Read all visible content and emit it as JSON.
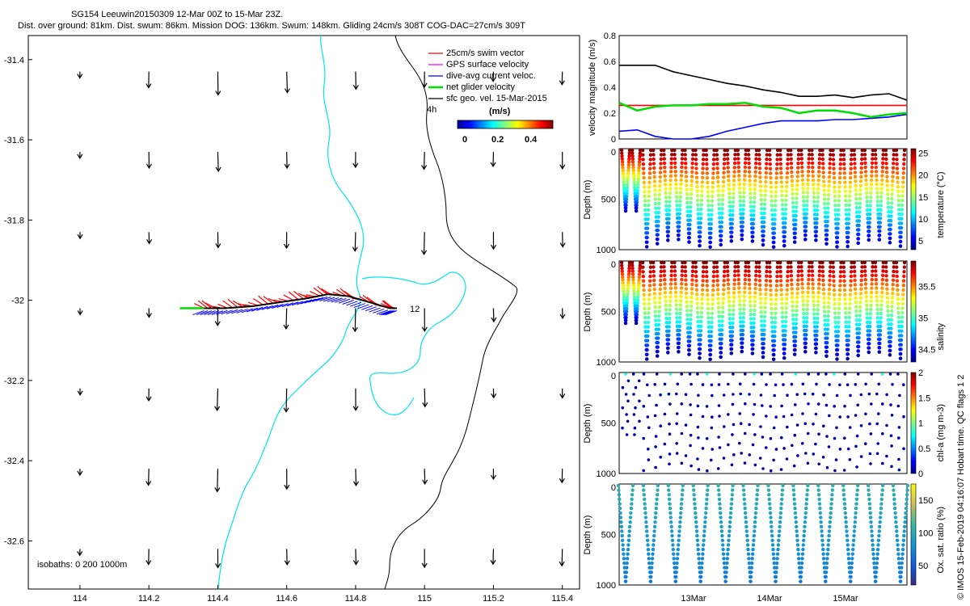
{
  "header": {
    "line1": "SG154 Leeuwin20150309 12-Mar 00Z to 15-Mar 23Z.",
    "line2": "Dist. over ground: 81km. Dist. swum: 86km. Mission DOG: 136km. Swum: 148km. Gliding 24cm/s 308T COG-DAC=27cm/s 309T"
  },
  "footer_vertical": "© IMOS 15-Feb-2019 04:16:07 Hobart time. QC flags 1 2",
  "colors": {
    "swim": "#ff0000",
    "gps": "#ff00ff",
    "dac": "#0000ff",
    "net": "#00dd00",
    "sfc": "#000000",
    "isobath": "#00e5ee",
    "isobath_deep": "#000000"
  },
  "map": {
    "legend": [
      {
        "label": "25cm/s swim vector",
        "color": "#ff0000"
      },
      {
        "label": "GPS surface velocity",
        "color": "#ff00ff"
      },
      {
        "label": "dive-avg current veloc.",
        "color": "#0000ff"
      },
      {
        "label": "net glider velocity",
        "color": "#00dd00"
      },
      {
        "label": "sfc geo. vel. 15-Mar-2015",
        "color": "#000000"
      }
    ],
    "time_label": "4h",
    "end_label": "12",
    "colorbar_title": "(m/s)",
    "colorbar_ticks": [
      "0",
      "0.2",
      "0.4"
    ],
    "isobaths_label": "isobaths: 0   200  1000m"
  },
  "chart_data": [
    {
      "type": "scatter",
      "title": "",
      "xlim": [
        113.85,
        115.45
      ],
      "ylim": [
        -32.72,
        -31.34
      ],
      "xticks": [
        "114",
        "114.2",
        "114.4",
        "114.6",
        "114.8",
        "115",
        "115.2",
        "115.4"
      ],
      "yticks": [
        "-31.4",
        "-31.6",
        "-31.8",
        "-32",
        "-32.2",
        "-32.4",
        "-32.6"
      ],
      "xtick_values": [
        114,
        114.2,
        114.4,
        114.6,
        114.8,
        115,
        115.2,
        115.4
      ],
      "ytick_values": [
        -31.4,
        -31.6,
        -31.8,
        -32,
        -32.2,
        -32.4,
        -32.6
      ],
      "glider_track": {
        "lon": [
          114.36,
          114.42,
          114.5,
          114.58,
          114.66,
          114.72,
          114.78,
          114.84,
          114.9,
          114.92
        ],
        "lat": [
          -32.02,
          -32.02,
          -32.015,
          -32.005,
          -31.995,
          -31.985,
          -31.99,
          -32.005,
          -32.02,
          -32.02
        ]
      },
      "current_grid": {
        "lon": [
          114,
          114.2,
          114.4,
          114.6,
          114.8,
          115,
          115.2,
          115.4
        ],
        "lat": [
          -31.43,
          -31.63,
          -31.83,
          -32.02,
          -32.22,
          -32.42,
          -32.62
        ],
        "note_units": "m/s"
      }
    },
    {
      "type": "line",
      "ylabel": "velocity magnitude (m/s)",
      "ylim": [
        0,
        0.8
      ],
      "yticks": [
        "0",
        "0.2",
        "0.4",
        "0.6",
        "0.8"
      ],
      "x": [
        0,
        0.25,
        0.5,
        0.75,
        1,
        1.25,
        1.5,
        1.75,
        2,
        2.25,
        2.5,
        2.75,
        3,
        3.25,
        3.5,
        3.75,
        4
      ],
      "series": [
        {
          "values": [
            0.57,
            0.57,
            0.57,
            0.52,
            0.49,
            0.46,
            0.43,
            0.41,
            0.38,
            0.36,
            0.33,
            0.33,
            0.34,
            0.32,
            0.34,
            0.35,
            0.3
          ]
        },
        {
          "values": [
            0.26,
            0.26,
            0.26,
            0.26,
            0.26,
            0.26,
            0.26,
            0.26,
            0.26,
            0.26,
            0.26,
            0.26,
            0.26,
            0.26,
            0.26,
            0.26,
            0.26
          ]
        },
        {
          "values": [
            0.06,
            0.07,
            0.02,
            0.0,
            0.0,
            0.02,
            0.06,
            0.09,
            0.12,
            0.14,
            0.14,
            0.14,
            0.15,
            0.15,
            0.16,
            0.17,
            0.19
          ]
        },
        {
          "values": [
            0.28,
            0.22,
            0.25,
            0.26,
            0.26,
            0.27,
            0.27,
            0.28,
            0.25,
            0.24,
            0.2,
            0.22,
            0.22,
            0.2,
            0.17,
            0.19,
            0.2
          ]
        }
      ]
    },
    {
      "type": "scatter",
      "ylabel": "Depth (m)",
      "cbar_label": "temperature (°C)",
      "cbar_ticks": [
        "25",
        "20",
        "15",
        "10",
        "5"
      ],
      "cbar_range": [
        3,
        26
      ],
      "depth_ticks": [
        "0",
        "500",
        "1000"
      ],
      "dives": 27,
      "max_depth": [
        650,
        1000
      ]
    },
    {
      "type": "scatter",
      "ylabel": "Depth (m)",
      "cbar_label": "salinity",
      "cbar_ticks": [
        "35.5",
        "35",
        "34.5"
      ],
      "cbar_range": [
        34.3,
        35.9
      ],
      "depth_ticks": [
        "0",
        "500",
        "1000"
      ],
      "dives": 27,
      "max_depth": [
        650,
        1000
      ]
    },
    {
      "type": "scatter",
      "ylabel": "Depth (m)",
      "cbar_label": "chl-a (mg m-3)",
      "cbar_ticks": [
        "2",
        "1.5",
        "1",
        "0.5",
        "0"
      ],
      "cbar_range": [
        0,
        2
      ],
      "depth_ticks": [
        "0",
        "500",
        "1000"
      ],
      "dives": 27
    },
    {
      "type": "scatter",
      "ylabel": "Depth (m)",
      "cbar_label": "Ox. sat. ratio (%)",
      "cbar_ticks": [
        "150",
        "100",
        "50"
      ],
      "cbar_range": [
        20,
        175
      ],
      "depth_ticks": [
        "0",
        "500",
        "1000"
      ],
      "xticks": [
        "13Mar",
        "14Mar",
        "15Mar"
      ],
      "dives": 12
    }
  ]
}
